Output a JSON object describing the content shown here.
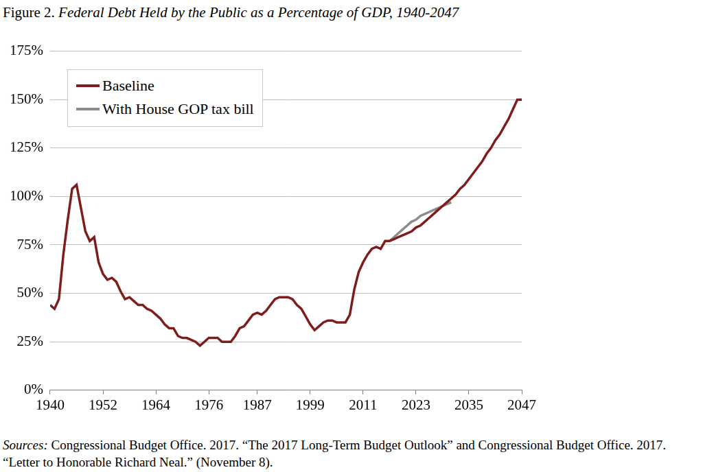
{
  "chart_data": {
    "type": "line",
    "title": "Figure 2. Federal Debt Held by the Public as a Percentage of GDP, 1940-2047",
    "source": "Sources: Congressional Budget Office. 2017. “The 2017 Long-Term Budget Outlook” and Congressional Budget Office. 2017. “Letter to Honorable Richard Neal.” (November 8).",
    "x": [
      1940,
      1941,
      1942,
      1943,
      1944,
      1945,
      1946,
      1947,
      1948,
      1949,
      1950,
      1951,
      1952,
      1953,
      1954,
      1955,
      1956,
      1957,
      1958,
      1959,
      1960,
      1961,
      1962,
      1963,
      1964,
      1965,
      1966,
      1967,
      1968,
      1969,
      1970,
      1971,
      1972,
      1973,
      1974,
      1975,
      1976,
      1977,
      1978,
      1979,
      1980,
      1981,
      1982,
      1983,
      1984,
      1985,
      1986,
      1987,
      1988,
      1989,
      1990,
      1991,
      1992,
      1993,
      1994,
      1995,
      1996,
      1997,
      1998,
      1999,
      2000,
      2001,
      2002,
      2003,
      2004,
      2005,
      2006,
      2007,
      2008,
      2009,
      2010,
      2011,
      2012,
      2013,
      2014,
      2015,
      2016,
      2017,
      2018,
      2019,
      2020,
      2021,
      2022,
      2023,
      2024,
      2025,
      2026,
      2027,
      2028,
      2029,
      2030,
      2031,
      2032,
      2033,
      2034,
      2035,
      2036,
      2037,
      2038,
      2039,
      2040,
      2041,
      2042,
      2043,
      2044,
      2045,
      2046,
      2047
    ],
    "series": [
      {
        "name": "Baseline",
        "color": "#7f1d1d",
        "values": [
          44,
          42,
          47,
          70,
          88,
          104,
          106,
          94,
          82,
          77,
          79,
          66,
          60,
          57,
          58,
          56,
          51,
          47,
          48,
          46,
          44,
          44,
          42,
          41,
          39,
          37,
          34,
          32,
          32,
          28,
          27,
          27,
          26,
          25,
          23,
          25,
          27,
          27,
          27,
          25,
          25,
          25,
          28,
          32,
          33,
          36,
          39,
          40,
          39,
          41,
          44,
          47,
          48,
          48,
          48,
          47,
          44,
          42,
          38,
          34,
          31,
          33,
          35,
          36,
          36,
          35,
          35,
          35,
          39,
          52,
          61,
          66,
          70,
          73,
          74,
          73,
          77,
          77,
          78,
          79,
          80,
          81,
          82,
          84,
          85,
          87,
          89,
          91,
          93,
          95,
          97,
          99,
          101,
          104,
          106,
          109,
          112,
          115,
          118,
          122,
          125,
          129,
          132,
          136,
          140,
          145,
          150,
          150
        ]
      },
      {
        "name": "With House GOP tax bill",
        "color": "#8c8c8c",
        "values": [
          null,
          null,
          null,
          null,
          null,
          null,
          null,
          null,
          null,
          null,
          null,
          null,
          null,
          null,
          null,
          null,
          null,
          null,
          null,
          null,
          null,
          null,
          null,
          null,
          null,
          null,
          null,
          null,
          null,
          null,
          null,
          null,
          null,
          null,
          null,
          null,
          null,
          null,
          null,
          null,
          null,
          null,
          null,
          null,
          null,
          null,
          null,
          null,
          null,
          null,
          null,
          null,
          null,
          null,
          null,
          null,
          null,
          null,
          null,
          null,
          null,
          null,
          null,
          null,
          null,
          null,
          null,
          null,
          null,
          null,
          null,
          null,
          null,
          null,
          null,
          null,
          null,
          77,
          79,
          81,
          83,
          85,
          87,
          88,
          90,
          91,
          92,
          93,
          94,
          95,
          96,
          97,
          null,
          null,
          null,
          null,
          null,
          null,
          null,
          null,
          null,
          null,
          null,
          null,
          null,
          null,
          null,
          null
        ]
      }
    ],
    "xlim": [
      1940,
      2047
    ],
    "xticks": [
      1940,
      1952,
      1964,
      1976,
      1987,
      1999,
      2011,
      2023,
      2035,
      2047
    ],
    "ylim": [
      0,
      175
    ],
    "yticks": [
      {
        "value": 0,
        "label": "0%"
      },
      {
        "value": 25,
        "label": "25%"
      },
      {
        "value": 50,
        "label": "50%"
      },
      {
        "value": 75,
        "label": "75%"
      },
      {
        "value": 100,
        "label": "100%"
      },
      {
        "value": 125,
        "label": "125%"
      },
      {
        "value": 150,
        "label": "150%"
      },
      {
        "value": 175,
        "label": "175%"
      }
    ],
    "grid": true,
    "legend": "upper left"
  }
}
